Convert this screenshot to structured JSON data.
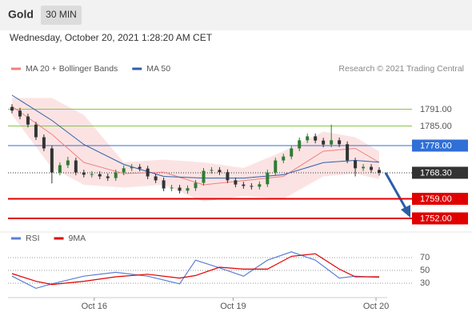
{
  "header": {
    "symbol": "Gold",
    "timeframe": "30 MIN",
    "datetime": "Wednesday, October 20, 2021 1:28:20 AM CET"
  },
  "chart_data": [
    {
      "type": "candlestick",
      "credit": "Research © 2021 Trading Central",
      "xlim": [
        -0.5,
        47
      ],
      "ylim": [
        1749,
        1797
      ],
      "up_color": "#2e7d32",
      "down_color": "#333333",
      "x": [
        0,
        1,
        2,
        3,
        4,
        5,
        6,
        7,
        8,
        9,
        10,
        11,
        12,
        13,
        14,
        15,
        16,
        17,
        18,
        19,
        20,
        21,
        22,
        23,
        24,
        25,
        26,
        27,
        28,
        29,
        30,
        31,
        32,
        33,
        34,
        35,
        36,
        37,
        38,
        39,
        40,
        41,
        42,
        43,
        44,
        45,
        46
      ],
      "open": [
        1791.8,
        1790.5,
        1788.4,
        1785.5,
        1781.0,
        1777.0,
        1768.4,
        1771.0,
        1772.7,
        1768.4,
        1767.6,
        1767.8,
        1767.0,
        1766.4,
        1768.4,
        1769.9,
        1770.4,
        1769.8,
        1767.0,
        1765.6,
        1762.7,
        1763.0,
        1761.9,
        1762.8,
        1764.7,
        1769.0,
        1769.3,
        1768.5,
        1765.6,
        1764.1,
        1763.6,
        1763.3,
        1764.2,
        1768.4,
        1772.7,
        1774.1,
        1777.0,
        1779.9,
        1781.3,
        1779.8,
        1778.4,
        1779.9,
        1778.5,
        1772.7,
        1769.9,
        1770.4,
        1769.3
      ],
      "high": [
        1792.8,
        1791.5,
        1789.4,
        1786.5,
        1782.0,
        1778.0,
        1772.0,
        1774.0,
        1773.7,
        1769.4,
        1768.8,
        1768.8,
        1768.0,
        1769.4,
        1770.9,
        1771.4,
        1771.4,
        1770.8,
        1768.0,
        1766.6,
        1764.0,
        1764.0,
        1763.8,
        1765.7,
        1770.0,
        1770.3,
        1770.3,
        1769.5,
        1766.6,
        1765.1,
        1764.6,
        1765.2,
        1769.4,
        1773.7,
        1775.1,
        1778.0,
        1780.9,
        1782.3,
        1782.3,
        1780.8,
        1785.5,
        1780.9,
        1779.5,
        1773.7,
        1771.4,
        1771.4,
        1770.3
      ],
      "low": [
        1789.5,
        1787.4,
        1784.5,
        1780.0,
        1776.0,
        1764.5,
        1767.4,
        1770.0,
        1767.4,
        1766.6,
        1766.6,
        1766.0,
        1765.4,
        1765.4,
        1767.4,
        1768.9,
        1768.8,
        1766.0,
        1764.6,
        1761.7,
        1761.7,
        1760.9,
        1760.9,
        1761.8,
        1763.7,
        1768.0,
        1767.5,
        1764.6,
        1763.1,
        1762.6,
        1762.3,
        1762.3,
        1763.2,
        1767.4,
        1771.7,
        1773.1,
        1776.0,
        1778.9,
        1778.8,
        1777.4,
        1777.4,
        1777.5,
        1771.7,
        1767.0,
        1768.9,
        1768.3,
        1767.3
      ],
      "close": [
        1790.5,
        1788.4,
        1785.5,
        1781.0,
        1777.0,
        1768.4,
        1771.0,
        1772.7,
        1768.4,
        1767.6,
        1767.8,
        1767.0,
        1766.4,
        1768.4,
        1769.9,
        1770.4,
        1769.8,
        1767.0,
        1765.6,
        1762.7,
        1763.0,
        1761.9,
        1762.8,
        1764.7,
        1769.0,
        1769.3,
        1768.5,
        1765.6,
        1764.1,
        1763.6,
        1763.3,
        1764.2,
        1768.4,
        1772.7,
        1774.1,
        1777.0,
        1779.9,
        1781.3,
        1779.8,
        1778.4,
        1779.9,
        1778.5,
        1772.7,
        1769.9,
        1770.4,
        1769.3,
        1768.3
      ],
      "series": [
        {
          "name": "MA 20 + Bollinger Bands",
          "color": "#f08080",
          "x": [
            0,
            5,
            9,
            14,
            19,
            24,
            29,
            34,
            39,
            43,
            46
          ],
          "values": [
            1792,
            1782,
            1772,
            1768,
            1768.5,
            1764,
            1765.5,
            1767,
            1776,
            1777,
            1772
          ],
          "upper": [
            1795,
            1795,
            1789,
            1772,
            1773,
            1772,
            1770,
            1776,
            1783,
            1781,
            1776
          ],
          "lower": [
            1789,
            1770,
            1764,
            1763,
            1764,
            1758,
            1760,
            1759,
            1767,
            1768,
            1766
          ]
        },
        {
          "name": "MA 50",
          "color": "#2f5fa8",
          "x": [
            0,
            5,
            9,
            14,
            19,
            24,
            29,
            34,
            39,
            43,
            46
          ],
          "values": [
            1796,
            1787,
            1778.4,
            1771.3,
            1767,
            1766.4,
            1766.4,
            1767.6,
            1771.9,
            1772.7,
            1772.1
          ]
        }
      ],
      "levels": [
        {
          "value": 1791,
          "label": "1791.00",
          "color": "#8bc34a",
          "boxed": false,
          "line": "solid"
        },
        {
          "value": 1785,
          "label": "1785.00",
          "color": "#8bc34a",
          "boxed": false,
          "line": "solid"
        },
        {
          "value": 1778,
          "label": "1778.00",
          "color": "#2f6fd6",
          "boxed": true,
          "line": "solid"
        },
        {
          "value": 1768.3,
          "label": "1768.30",
          "color": "#333333",
          "boxed": true,
          "line": "dotted"
        },
        {
          "value": 1759,
          "label": "1759.00",
          "color": "#e00000",
          "boxed": true,
          "line": "solid"
        },
        {
          "value": 1752,
          "label": "1752.00",
          "color": "#e00000",
          "boxed": true,
          "line": "solid"
        }
      ]
    },
    {
      "type": "line",
      "xlim": [
        -0.5,
        47
      ],
      "ylim": [
        8,
        85
      ],
      "yticks": [
        70,
        50,
        30
      ],
      "xticks": [
        {
          "value": 10.3,
          "label": "Oct 16"
        },
        {
          "value": 27.7,
          "label": "Oct 19"
        },
        {
          "value": 45.6,
          "label": "Oct 20"
        }
      ],
      "series": [
        {
          "name": "RSI",
          "color": "#5b7fd6",
          "x": [
            0,
            3,
            5,
            9,
            13,
            17,
            21,
            23,
            26,
            29,
            32,
            35,
            38,
            41,
            43,
            46
          ],
          "values": [
            41,
            22,
            29,
            41,
            47,
            41,
            29,
            66,
            54,
            41,
            66,
            79,
            66,
            38,
            41,
            39
          ]
        },
        {
          "name": "9MA",
          "color": "#e00000",
          "x": [
            0,
            3,
            5,
            9,
            13,
            17,
            21,
            23,
            26,
            29,
            32,
            35,
            38,
            41,
            43,
            46
          ],
          "values": [
            45,
            33,
            28,
            33,
            40,
            44,
            38,
            42,
            55,
            52,
            52,
            72,
            76,
            52,
            40,
            40
          ]
        }
      ]
    }
  ]
}
